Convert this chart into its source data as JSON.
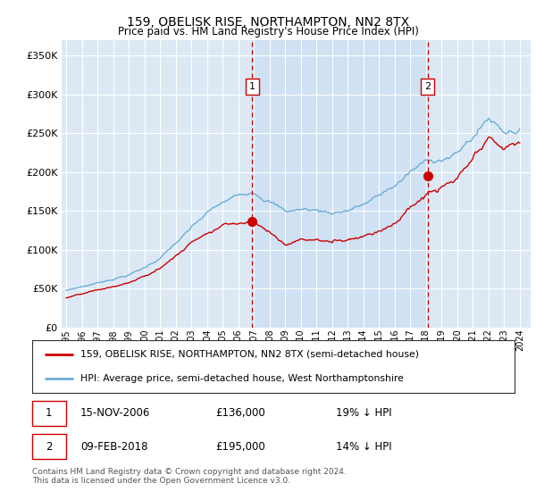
{
  "title": "159, OBELISK RISE, NORTHAMPTON, NN2 8TX",
  "subtitle": "Price paid vs. HM Land Registry's House Price Index (HPI)",
  "hpi_label": "HPI: Average price, semi-detached house, West Northamptonshire",
  "property_label": "159, OBELISK RISE, NORTHAMPTON, NN2 8TX (semi-detached house)",
  "sale1_date": "15-NOV-2006",
  "sale1_price": 136000,
  "sale1_pct": "19% ↓ HPI",
  "sale2_date": "09-FEB-2018",
  "sale2_price": 195000,
  "sale2_pct": "14% ↓ HPI",
  "footer": "Contains HM Land Registry data © Crown copyright and database right 2024.\nThis data is licensed under the Open Government Licence v3.0.",
  "hpi_color": "#6baed6",
  "property_color": "#cc0000",
  "background_color": "#dce9f5",
  "shade_color": "#dce9f5",
  "vline_color": "#cc0000",
  "ylim": [
    0,
    370000
  ],
  "yticks": [
    0,
    50000,
    100000,
    150000,
    200000,
    250000,
    300000,
    350000
  ],
  "sale1_x": 2006.88,
  "sale2_x": 2018.11,
  "sale1_dot_y": 136000,
  "sale2_dot_y": 195000,
  "xmin": 1995,
  "xmax": 2024
}
